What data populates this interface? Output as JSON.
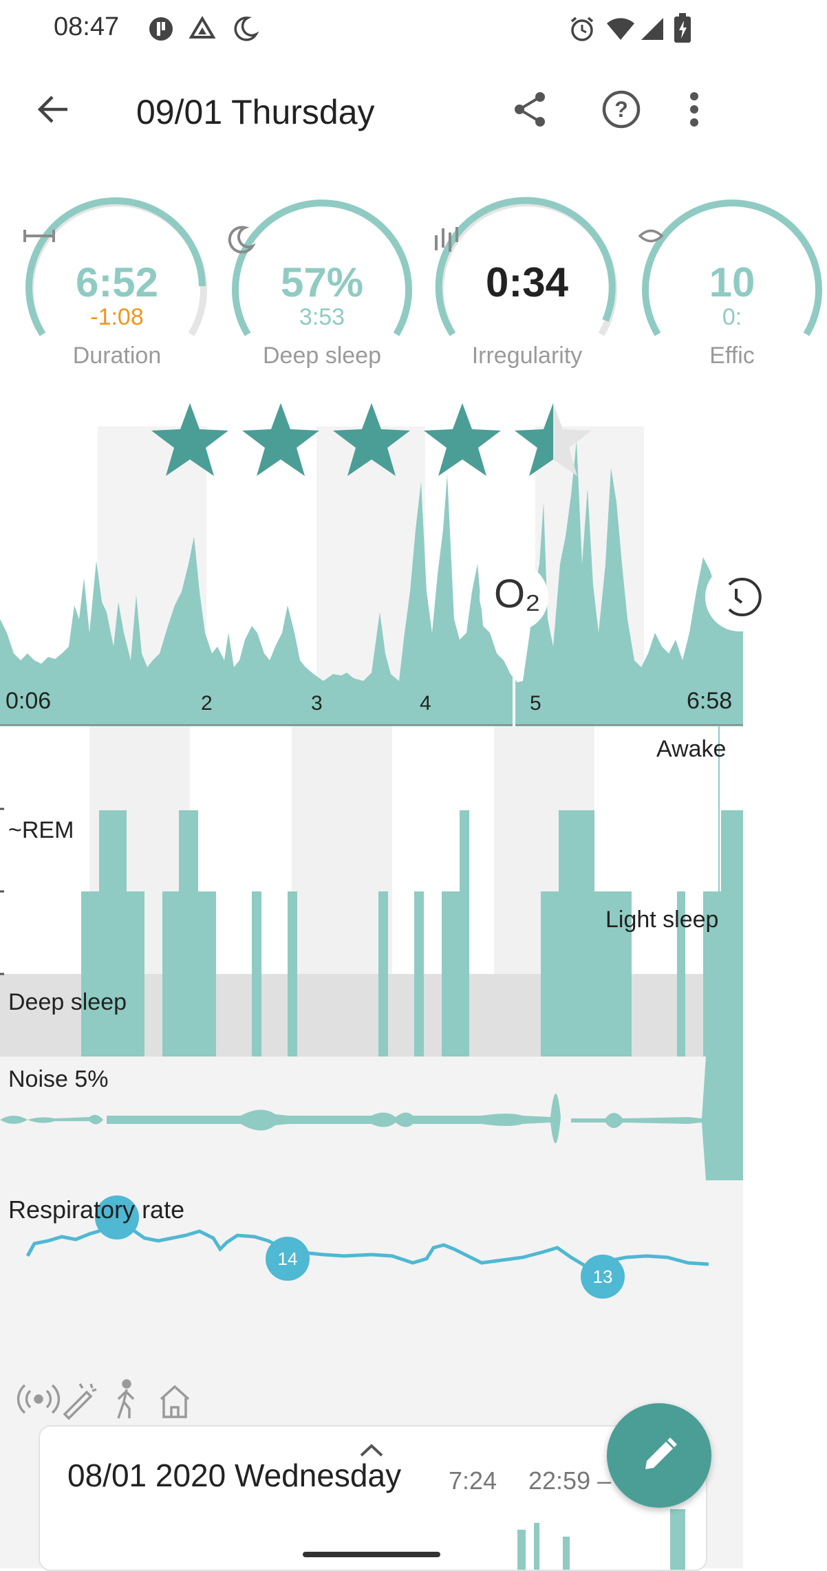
{
  "status_bar": {
    "time": "08:47"
  },
  "header": {
    "title": "09/01 Thursday"
  },
  "gauges": [
    {
      "icon": "duration-icon",
      "value": "6:52",
      "sub": "-1:08",
      "label": "Duration",
      "fill": 0.86
    },
    {
      "icon": "moon-icon",
      "value": "57%",
      "sub": "3:53",
      "label": "Deep sleep",
      "fill": 1.0
    },
    {
      "icon": "irregularity-icon",
      "value": "0:34",
      "sub": "",
      "label": "Irregularity",
      "fill": 0.9
    },
    {
      "icon": "efficiency-icon",
      "value": "10",
      "sub": "0:",
      "label": "Effic",
      "fill": 1.0
    }
  ],
  "rating": {
    "stars": 4.5,
    "max": 5
  },
  "chart": {
    "start_label": "0:06",
    "hour_ticks": [
      "2",
      "3",
      "4",
      "5"
    ],
    "end_label": "6:58",
    "o2_label": "O₂"
  },
  "hypnogram": {
    "labels": {
      "awake": "Awake",
      "rem": "~REM",
      "light": "Light sleep",
      "deep": "Deep sleep"
    }
  },
  "noise": {
    "label": "Noise 5%"
  },
  "respiratory": {
    "label": "Respiratory rate",
    "markers": [
      "14",
      "13"
    ]
  },
  "bottom_card": {
    "date": "08/01 2020 Wednesday",
    "time1": "7:24",
    "time2": "22:59 –"
  },
  "colors": {
    "accent": "#4a9e96",
    "fill": "#8fcbc2",
    "orange": "#f0961e",
    "resp": "#4fb8d3"
  }
}
